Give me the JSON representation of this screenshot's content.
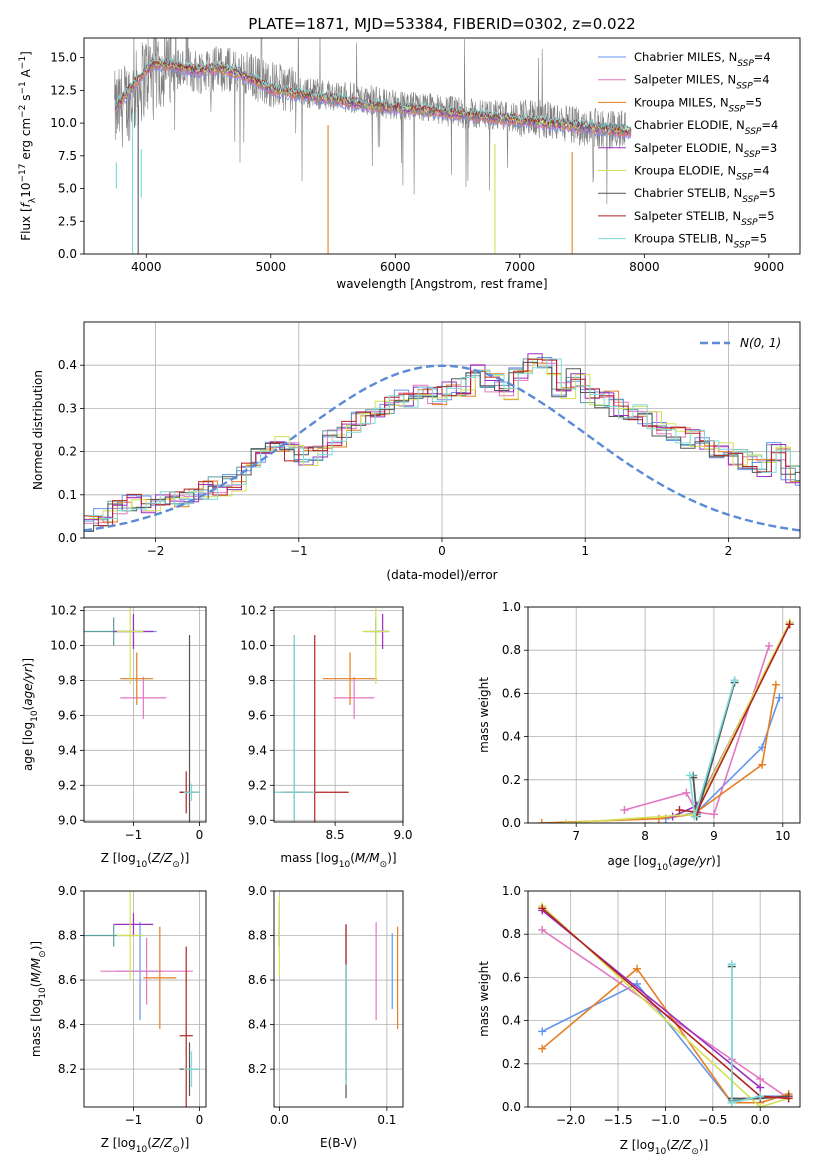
{
  "figure_title": "PLATE=1871, MJD=53384, FIBERID=0302, z=0.022",
  "colors": {
    "Chabrier MILES": "#6495ed",
    "Salpeter MILES": "#e377c2",
    "Kroupa MILES": "#e67e22",
    "Chabrier ELODIE": "#5f9ea0",
    "Salpeter ELODIE": "#9b30c0",
    "Kroupa ELODIE": "#d4e157",
    "Chabrier STELIB": "#555555",
    "Salpeter STELIB": "#b22222",
    "Kroupa STELIB": "#7fdbdb",
    "data": "#808080",
    "gaussian": "#5b8bd6"
  },
  "chart_data": [
    {
      "id": "spectrum",
      "type": "line",
      "xlabel": "wavelength [Angstrom, rest frame]",
      "ylabel": "Flux [f_λ 10^-17 erg cm^-2 s^-1 A^-1]",
      "xlim": [
        3500,
        9250
      ],
      "ylim": [
        0,
        16.5
      ],
      "xticks": [
        4000,
        5000,
        6000,
        7000,
        8000,
        9000
      ],
      "yticks": [
        0.0,
        2.5,
        5.0,
        7.5,
        10.0,
        12.5,
        15.0
      ],
      "legend_position": "top-right",
      "legend": [
        {
          "label": "Chabrier MILES, N",
          "sub": "SSP",
          "suffix": "=4"
        },
        {
          "label": "Salpeter MILES, N",
          "sub": "SSP",
          "suffix": "=4"
        },
        {
          "label": "Kroupa MILES, N",
          "sub": "SSP",
          "suffix": "=5"
        },
        {
          "label": "Chabrier ELODIE, N",
          "sub": "SSP",
          "suffix": "=4"
        },
        {
          "label": "Salpeter ELODIE, N",
          "sub": "SSP",
          "suffix": "=3"
        },
        {
          "label": "Kroupa ELODIE, N",
          "sub": "SSP",
          "suffix": "=4"
        },
        {
          "label": "Chabrier STELIB, N",
          "sub": "SSP",
          "suffix": "=5"
        },
        {
          "label": "Salpeter STELIB, N",
          "sub": "SSP",
          "suffix": "=5"
        },
        {
          "label": "Kroupa STELIB, N",
          "sub": "SSP",
          "suffix": "=5"
        }
      ],
      "data_envelope": {
        "wavelength": [
          3750,
          3900,
          4000,
          4200,
          4400,
          4600,
          4800,
          5000,
          5200,
          5500,
          5800,
          6000,
          6300,
          6600,
          6900,
          7200,
          7500,
          7800
        ],
        "flux": [
          10.5,
          11.8,
          13.5,
          14.0,
          13.8,
          14.0,
          13.6,
          12.8,
          12.3,
          12.0,
          11.6,
          11.2,
          11.0,
          10.6,
          10.4,
          10.1,
          9.6,
          9.3
        ]
      },
      "model_continuum": {
        "wavelength": [
          3750,
          3850,
          3950,
          4050,
          4200,
          4400,
          4600,
          4800,
          5000,
          5200,
          5500,
          5800,
          6100,
          6400,
          6700,
          7000,
          7300,
          7600,
          7900
        ],
        "flux": [
          11.2,
          12.3,
          13.5,
          14.5,
          14.4,
          14.0,
          14.2,
          13.6,
          12.6,
          12.2,
          11.8,
          11.3,
          11.1,
          10.8,
          10.5,
          10.2,
          9.9,
          9.6,
          9.3
        ]
      },
      "notch_wavelengths": [
        3890,
        3935,
        5460,
        6800,
        7420
      ]
    },
    {
      "id": "residuals",
      "type": "histogram",
      "xlabel": "(data-model)/error",
      "ylabel": "Normed distribution",
      "xlim": [
        -2.5,
        2.5
      ],
      "ylim": [
        0,
        0.5
      ],
      "xticks": [
        -2,
        -1,
        0,
        1,
        2
      ],
      "yticks": [
        0.0,
        0.1,
        0.2,
        0.3,
        0.4
      ],
      "legend_position": "top-right",
      "legend_label": "N(0, 1)",
      "bin_edges_start": -2.5,
      "bin_width": 0.1,
      "values": [
        0.03,
        0.05,
        0.07,
        0.08,
        0.08,
        0.09,
        0.09,
        0.1,
        0.11,
        0.12,
        0.13,
        0.16,
        0.19,
        0.22,
        0.2,
        0.19,
        0.2,
        0.23,
        0.25,
        0.28,
        0.3,
        0.31,
        0.32,
        0.34,
        0.33,
        0.34,
        0.35,
        0.38,
        0.36,
        0.34,
        0.38,
        0.41,
        0.4,
        0.34,
        0.37,
        0.33,
        0.32,
        0.3,
        0.29,
        0.27,
        0.25,
        0.24,
        0.23,
        0.22,
        0.2,
        0.19,
        0.18,
        0.16,
        0.2,
        0.15,
        0.13,
        0.15,
        0.12,
        0.11,
        0.1,
        0.09,
        0.08,
        0.07,
        0.06,
        0.05
      ]
    },
    {
      "id": "age_vs_Z",
      "type": "errorbar",
      "xlabel": "Z [log10(Z/Z☉)]",
      "ylabel": "age [log10(age/yr)]",
      "xlim": [
        -1.75,
        0.1
      ],
      "ylim": [
        8.99,
        10.22
      ],
      "xticks": [
        -1,
        0
      ],
      "xticks_minor_label": [
        -1.5,
        -0.5
      ],
      "yticks": [
        9.0,
        9.2,
        9.4,
        9.6,
        9.8,
        10.0,
        10.2
      ],
      "points": [
        {
          "model": "Chabrier MILES",
          "x": -1.0,
          "y": 10.08,
          "xerr": 0.35,
          "yerr": 0.08
        },
        {
          "model": "Salpeter MILES",
          "x": -0.85,
          "y": 9.7,
          "xerr": 0.35,
          "yerr": 0.12
        },
        {
          "model": "Kroupa MILES",
          "x": -0.95,
          "y": 9.81,
          "xerr": 0.25,
          "yerr": 0.15
        },
        {
          "model": "Chabrier ELODIE",
          "x": -1.3,
          "y": 10.08,
          "xerr": 0.45,
          "yerr": 0.08
        },
        {
          "model": "Salpeter ELODIE",
          "x": -1.0,
          "y": 10.08,
          "xerr": 0.3,
          "yerr": 0.1
        },
        {
          "model": "Kroupa ELODIE",
          "x": -1.05,
          "y": 10.08,
          "xerr": 0.2,
          "yerr": 0.3
        },
        {
          "model": "Chabrier STELIB",
          "x": -0.15,
          "y": 9.16,
          "xerr": 0.15,
          "yerr": 0.9
        },
        {
          "model": "Salpeter STELIB",
          "x": -0.2,
          "y": 9.16,
          "xerr": 0.1,
          "yerr": 0.12
        },
        {
          "model": "Kroupa STELIB",
          "x": -0.12,
          "y": 9.16,
          "xerr": 0.12,
          "yerr": 0.05
        }
      ]
    },
    {
      "id": "age_vs_mass",
      "type": "errorbar",
      "xlabel": "mass [log10(M/M☉)]",
      "xlim": [
        8.05,
        9.0
      ],
      "ylim": [
        8.99,
        10.22
      ],
      "xticks": [
        8.5,
        9.0
      ],
      "yticks": [
        9.0,
        9.2,
        9.4,
        9.6,
        9.8,
        10.0,
        10.2
      ],
      "points": [
        {
          "model": "Chabrier MILES",
          "x": 8.8,
          "y": 10.08,
          "xerr": 0.08,
          "yerr": 0.08
        },
        {
          "model": "Salpeter MILES",
          "x": 8.64,
          "y": 9.7,
          "xerr": 0.15,
          "yerr": 0.12
        },
        {
          "model": "Kroupa MILES",
          "x": 8.61,
          "y": 9.81,
          "xerr": 0.2,
          "yerr": 0.15
        },
        {
          "model": "Chabrier ELODIE",
          "x": 8.8,
          "y": 10.08,
          "xerr": 0.05,
          "yerr": 0.08
        },
        {
          "model": "Salpeter ELODIE",
          "x": 8.85,
          "y": 10.08,
          "xerr": 0.05,
          "yerr": 0.1
        },
        {
          "model": "Kroupa ELODIE",
          "x": 8.8,
          "y": 10.08,
          "xerr": 0.1,
          "yerr": 0.3
        },
        {
          "model": "Chabrier STELIB",
          "x": 8.2,
          "y": 9.16,
          "xerr": 0.08,
          "yerr": 0.9
        },
        {
          "model": "Salpeter STELIB",
          "x": 8.35,
          "y": 9.16,
          "xerr": 0.25,
          "yerr": 0.9
        },
        {
          "model": "Kroupa STELIB",
          "x": 8.2,
          "y": 9.16,
          "xerr": 0.15,
          "yerr": 0.9
        }
      ]
    },
    {
      "id": "mass_weight_vs_age",
      "type": "line",
      "xlabel": "age [log10(age/yr)]",
      "ylabel": "mass weight",
      "xlim": [
        6.3,
        10.25
      ],
      "ylim": [
        0,
        1
      ],
      "xticks": [
        7,
        8,
        9,
        10
      ],
      "yticks": [
        0.0,
        0.2,
        0.4,
        0.6,
        0.8,
        1.0
      ],
      "series": [
        {
          "model": "Chabrier MILES",
          "x": [
            8.3,
            8.75,
            9.7,
            9.95
          ],
          "y": [
            0.02,
            0.05,
            0.35,
            0.58
          ]
        },
        {
          "model": "Salpeter MILES",
          "x": [
            7.7,
            8.6,
            8.75,
            9.0,
            9.8
          ],
          "y": [
            0.06,
            0.14,
            0.05,
            0.04,
            0.82
          ]
        },
        {
          "model": "Kroupa MILES",
          "x": [
            6.5,
            8.2,
            8.7,
            9.7,
            9.9
          ],
          "y": [
            0.0,
            0.02,
            0.04,
            0.27,
            0.64
          ]
        },
        {
          "model": "Chabrier ELODIE",
          "x": [
            8.7,
            8.75,
            9.3
          ],
          "y": [
            0.22,
            0.04,
            0.66
          ]
        },
        {
          "model": "Salpeter ELODIE",
          "x": [
            8.4,
            8.75,
            10.1
          ],
          "y": [
            0.03,
            0.08,
            0.92
          ]
        },
        {
          "model": "Kroupa ELODIE",
          "x": [
            6.85,
            8.7,
            10.1
          ],
          "y": [
            0.0,
            0.04,
            0.93
          ]
        },
        {
          "model": "Chabrier STELIB",
          "x": [
            8.7,
            8.75,
            9.3
          ],
          "y": [
            0.21,
            0.03,
            0.65
          ]
        },
        {
          "model": "Salpeter STELIB",
          "x": [
            8.5,
            8.75,
            10.1
          ],
          "y": [
            0.06,
            0.05,
            0.92
          ]
        },
        {
          "model": "Kroupa STELIB",
          "x": [
            8.65,
            8.72,
            9.3
          ],
          "y": [
            0.22,
            0.03,
            0.66
          ]
        }
      ]
    },
    {
      "id": "mass_vs_Z",
      "type": "errorbar",
      "xlabel": "Z [log10(Z/Z☉)]",
      "ylabel": "mass [log10(M/M☉)]",
      "xlim": [
        -1.75,
        0.1
      ],
      "ylim": [
        8.03,
        9.0
      ],
      "xticks": [
        -1,
        0
      ],
      "yticks": [
        8.2,
        8.4,
        8.6,
        8.8,
        9.0
      ],
      "points": [
        {
          "model": "Chabrier MILES",
          "x": -0.9,
          "y": 8.64,
          "xerr": 0.35,
          "yerr": 0.22
        },
        {
          "model": "Salpeter MILES",
          "x": -0.8,
          "y": 8.64,
          "xerr": 0.7,
          "yerr": 0.15
        },
        {
          "model": "Kroupa MILES",
          "x": -0.6,
          "y": 8.61,
          "xerr": 0.25,
          "yerr": 0.23
        },
        {
          "model": "Chabrier ELODIE",
          "x": -1.3,
          "y": 8.8,
          "xerr": 0.45,
          "yerr": 0.05
        },
        {
          "model": "Salpeter ELODIE",
          "x": -1.0,
          "y": 8.85,
          "xerr": 0.3,
          "yerr": 0.05
        },
        {
          "model": "Kroupa ELODIE",
          "x": -1.05,
          "y": 8.8,
          "xerr": 0.2,
          "yerr": 0.2
        },
        {
          "model": "Chabrier STELIB",
          "x": -0.15,
          "y": 8.2,
          "xerr": 0.15,
          "yerr": 0.12
        },
        {
          "model": "Salpeter STELIB",
          "x": -0.2,
          "y": 8.35,
          "xerr": 0.1,
          "yerr": 0.4
        },
        {
          "model": "Kroupa STELIB",
          "x": -0.12,
          "y": 8.2,
          "xerr": 0.12,
          "yerr": 0.08
        }
      ]
    },
    {
      "id": "mass_vs_EBV",
      "type": "errorbar",
      "xlabel": "E(B-V)",
      "xlim": [
        -0.005,
        0.115
      ],
      "ylim": [
        8.03,
        9.0
      ],
      "xticks": [
        0.0,
        0.1
      ],
      "yticks": [
        8.2,
        8.4,
        8.6,
        8.8,
        9.0
      ],
      "points": [
        {
          "model": "Chabrier MILES",
          "x": 0.105,
          "y": 8.64,
          "xerr": 0,
          "yerr": 0.17
        },
        {
          "model": "Salpeter MILES",
          "x": 0.09,
          "y": 8.64,
          "xerr": 0,
          "yerr": 0.22
        },
        {
          "model": "Kroupa MILES",
          "x": 0.11,
          "y": 8.61,
          "xerr": 0,
          "yerr": 0.23
        },
        {
          "model": "Chabrier ELODIE",
          "x": 0.0,
          "y": 8.8,
          "xerr": 0,
          "yerr": 0.05
        },
        {
          "model": "Salpeter ELODIE",
          "x": 0.0,
          "y": 8.85,
          "xerr": 0,
          "yerr": 0.1
        },
        {
          "model": "Kroupa ELODIE",
          "x": 0.0,
          "y": 8.8,
          "xerr": 0,
          "yerr": 0.18
        },
        {
          "model": "Chabrier STELIB",
          "x": 0.062,
          "y": 8.46,
          "xerr": 0,
          "yerr": 0.39
        },
        {
          "model": "Salpeter STELIB",
          "x": 0.062,
          "y": 8.5,
          "xerr": 0,
          "yerr": 0.35
        },
        {
          "model": "Kroupa STELIB",
          "x": 0.062,
          "y": 8.4,
          "xerr": 0,
          "yerr": 0.27
        }
      ]
    },
    {
      "id": "mass_weight_vs_Z",
      "type": "line",
      "xlabel": "Z [log10(Z/Z☉)]",
      "ylabel": "mass weight",
      "xlim": [
        -2.45,
        0.42
      ],
      "ylim": [
        0,
        1
      ],
      "xticks": [
        -2.0,
        -1.5,
        -1.0,
        -0.5,
        0.0
      ],
      "yticks": [
        0.0,
        0.2,
        0.4,
        0.6,
        0.8,
        1.0
      ],
      "series": [
        {
          "model": "Chabrier MILES",
          "x": [
            -2.3,
            -1.3,
            -0.3,
            0.0,
            0.3
          ],
          "y": [
            0.35,
            0.57,
            0.02,
            0.05,
            0.05
          ]
        },
        {
          "model": "Salpeter MILES",
          "x": [
            -2.3,
            -0.3,
            0.0,
            0.3
          ],
          "y": [
            0.82,
            0.22,
            0.13,
            0.04
          ]
        },
        {
          "model": "Kroupa MILES",
          "x": [
            -2.3,
            -1.3,
            -0.3,
            0.0,
            0.3
          ],
          "y": [
            0.27,
            0.64,
            0.02,
            0.02,
            0.06
          ]
        },
        {
          "model": "Chabrier ELODIE",
          "x": [
            -0.3,
            -0.3,
            0.0
          ],
          "y": [
            0.66,
            0.03,
            0.04
          ]
        },
        {
          "model": "Salpeter ELODIE",
          "x": [
            -2.3,
            0.0
          ],
          "y": [
            0.91,
            0.09
          ]
        },
        {
          "model": "Kroupa ELODIE",
          "x": [
            -2.3,
            0.0,
            0.3
          ],
          "y": [
            0.93,
            0.0,
            0.04
          ]
        },
        {
          "model": "Chabrier STELIB",
          "x": [
            -0.3,
            -0.3,
            0.0,
            0.3
          ],
          "y": [
            0.65,
            0.04,
            0.04,
            0.05
          ]
        },
        {
          "model": "Salpeter STELIB",
          "x": [
            -2.3,
            0.0,
            0.3
          ],
          "y": [
            0.92,
            0.05,
            0.04
          ]
        },
        {
          "model": "Kroupa STELIB",
          "x": [
            -0.3,
            -0.3,
            0.0
          ],
          "y": [
            0.66,
            0.02,
            0.05
          ]
        }
      ]
    }
  ]
}
